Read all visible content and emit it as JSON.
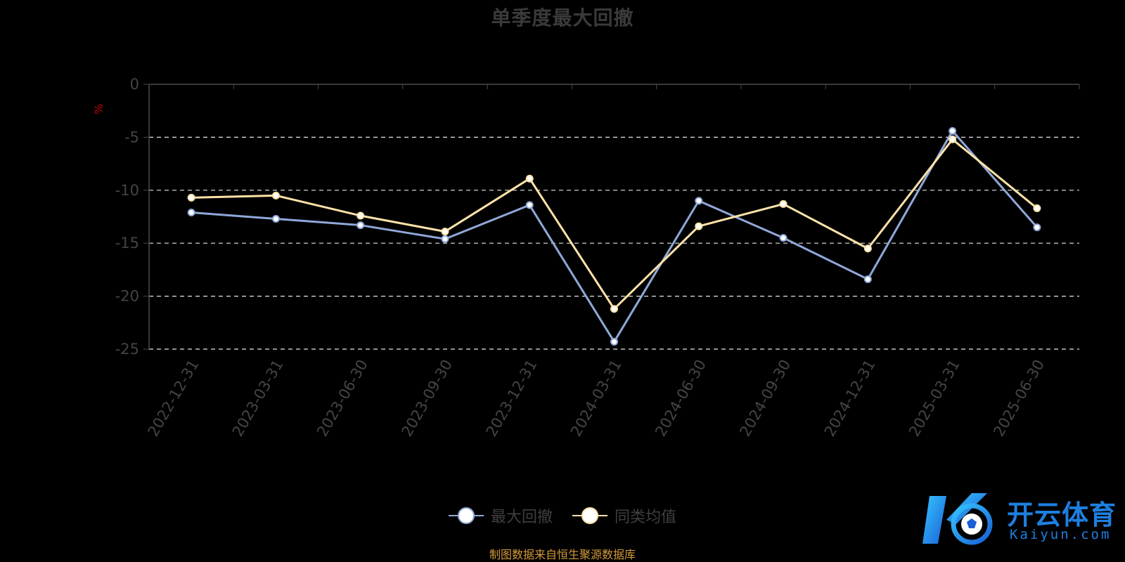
{
  "chart_data": {
    "type": "line",
    "title": "单季度最大回撤",
    "ylabel": "%",
    "ylim": [
      -25,
      0
    ],
    "yticks": [
      0,
      -5,
      -10,
      -15,
      -20,
      -25
    ],
    "grid": true,
    "legend_position": "bottom-center",
    "categories": [
      "2022-12-31",
      "2023-03-31",
      "2023-06-30",
      "2023-09-30",
      "2023-12-31",
      "2024-03-31",
      "2024-06-30",
      "2024-09-30",
      "2024-12-31",
      "2025-03-31",
      "2025-06-30"
    ],
    "series": [
      {
        "name": "最大回撤",
        "color": "#8fa8d8",
        "values": [
          -12.1,
          -12.7,
          -13.3,
          -14.6,
          -11.4,
          -24.3,
          -11.0,
          -14.5,
          -18.4,
          -4.4,
          -13.5
        ]
      },
      {
        "name": "同类均值",
        "color": "#ffe2a8",
        "values": [
          -10.7,
          -10.5,
          -12.4,
          -13.9,
          -8.9,
          -21.2,
          -13.4,
          -11.3,
          -15.5,
          -5.2,
          -11.7
        ]
      }
    ]
  },
  "legend": {
    "items": [
      {
        "label": "最大回撤",
        "color": "#8fa8d8"
      },
      {
        "label": "同类均值",
        "color": "#ffe2a8"
      }
    ]
  },
  "footer": {
    "source": "制图数据来自恒生聚源数据库"
  },
  "watermark": {
    "name_cn": "开云体育",
    "name_en": "Kaiyun.com",
    "icon": "kaiyun-logo-icon"
  }
}
